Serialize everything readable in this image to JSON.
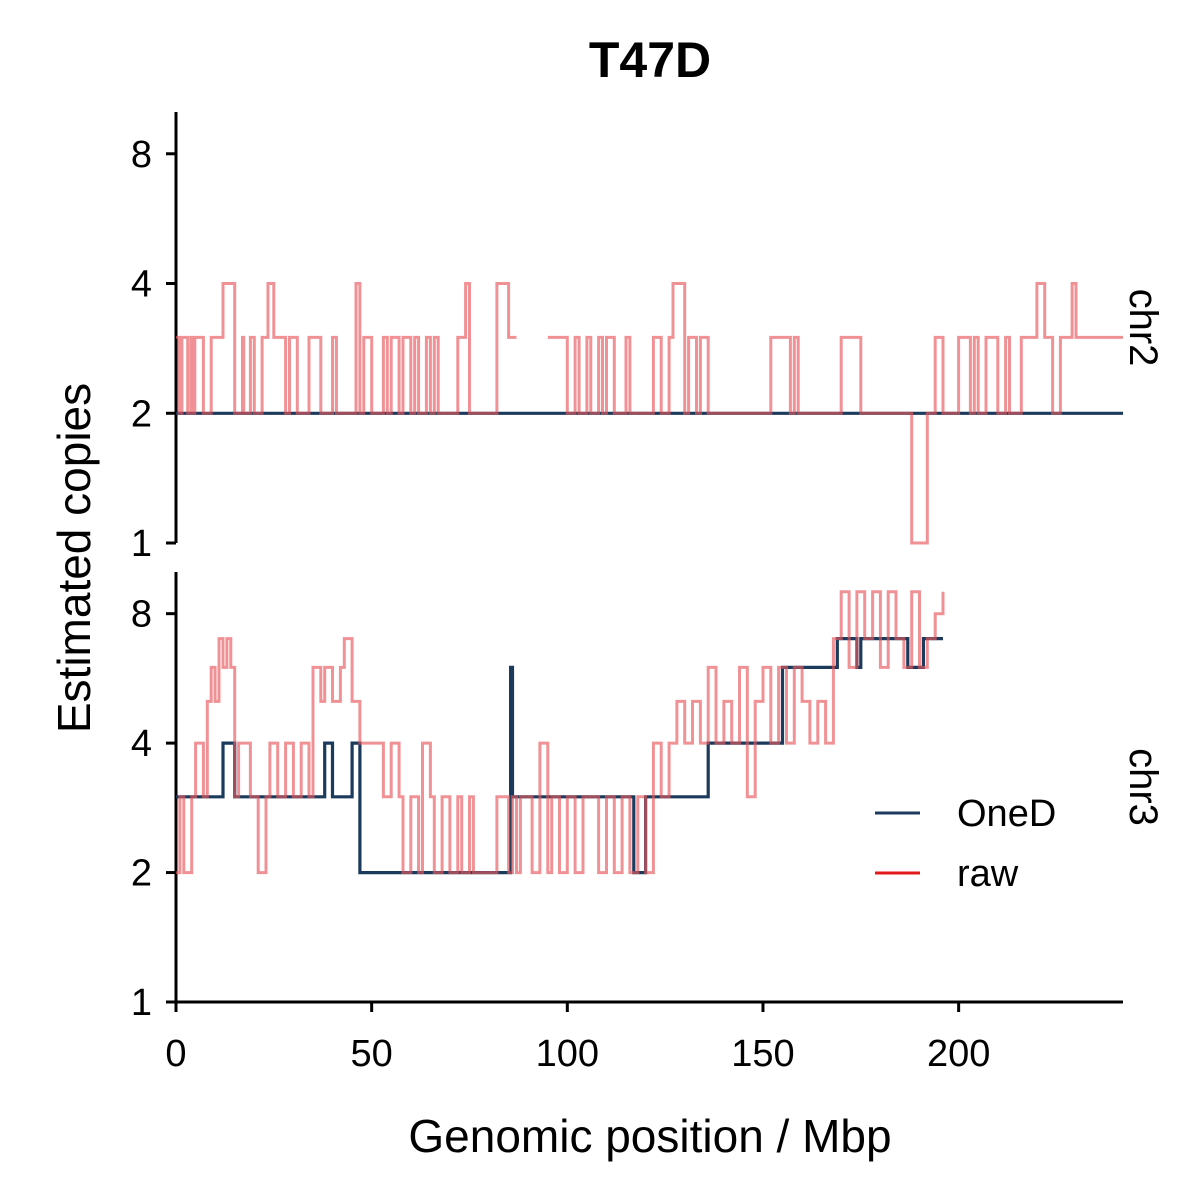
{
  "chart_data": {
    "type": "line",
    "title": "T47D",
    "xlabel": "Genomic position / Mbp",
    "ylabel": "Estimated copies",
    "xlim": [
      0,
      242
    ],
    "x_ticks": [
      0,
      50,
      100,
      150,
      200
    ],
    "y_scale": "log2",
    "ylim": [
      1,
      10
    ],
    "y_ticks": [
      1,
      2,
      4,
      8
    ],
    "grid": false,
    "legend_position": "bottom-right",
    "legend": [
      {
        "name": "OneD",
        "color": "#1b3a5c"
      },
      {
        "name": "raw",
        "color": "#e31a1c"
      }
    ],
    "panels": [
      {
        "label": "chr2",
        "series": [
          {
            "name": "OneD",
            "color": "#1b3a5c",
            "x": [
              0,
              242
            ],
            "y": [
              2,
              2
            ]
          },
          {
            "name": "raw",
            "color": "#e8585c",
            "x": [
              0,
              0.8,
              1.5,
              3,
              3.8,
              4.3,
              4.8,
              7,
              9,
              12,
              15,
              17,
              17.3,
              19,
              20,
              22,
              23.5,
              25,
              28,
              29,
              31,
              34,
              37,
              40,
              41,
              46,
              47,
              48,
              50,
              53,
              54,
              55,
              57,
              58,
              60,
              61,
              62,
              64,
              65,
              66,
              67,
              70,
              72,
              74,
              75,
              76,
              82,
              85,
              87
            ],
            "y": [
              3,
              2,
              3,
              2,
              3,
              2,
              3,
              2,
              3,
              4,
              2,
              3,
              2,
              3,
              2,
              3,
              4,
              3,
              2,
              3,
              2,
              3,
              2,
              3,
              2,
              4,
              2,
              3,
              2,
              3,
              2,
              3,
              2,
              3,
              2,
              3,
              2,
              3,
              2,
              3,
              2,
              2,
              3,
              4,
              2,
              2,
              4,
              3,
              3
            ]
          },
          {
            "name": "raw",
            "color": "#e8585c",
            "x": [
              95,
              98,
              100,
              102,
              103,
              105,
              106,
              108,
              109,
              110,
              112,
              115,
              116,
              120,
              122,
              124,
              126,
              127,
              130,
              131,
              133,
              134,
              136,
              150,
              152,
              157,
              158,
              159,
              170,
              175,
              178,
              182,
              184,
              188,
              191,
              192,
              194,
              196,
              200,
              203,
              204,
              205,
              207,
              210,
              212,
              213,
              216,
              220,
              222,
              224,
              226,
              229,
              230,
              232,
              242
            ],
            "y": [
              3,
              3,
              2,
              3,
              2,
              3,
              2,
              3,
              2,
              3,
              2,
              3,
              2,
              2,
              3,
              2,
              3,
              4,
              2,
              3,
              2,
              3,
              2,
              2,
              3,
              2,
              3,
              2,
              3,
              2,
              2,
              2,
              2,
              1,
              1,
              2,
              3,
              2,
              3,
              2,
              3,
              2,
              3,
              2,
              3,
              2,
              3,
              4,
              3,
              2,
              3,
              4,
              3,
              3,
              3
            ]
          }
        ]
      },
      {
        "label": "chr3",
        "series": [
          {
            "name": "OneD",
            "color": "#1b3a5c",
            "x": [
              0,
              12,
              15,
              37,
              38,
              40,
              45,
              47,
              55,
              85,
              85.5,
              86,
              87,
              96,
              117,
              120,
              136,
              155,
              169,
              174,
              175,
              187,
              190,
              191,
              196
            ],
            "y": [
              3,
              4,
              3,
              3,
              4,
              3,
              4,
              2,
              2,
              2,
              6,
              3,
              3,
              3,
              2,
              3,
              4,
              6,
              7,
              6,
              7,
              6,
              6,
              7,
              7
            ]
          },
          {
            "name": "raw",
            "color": "#e8585c",
            "x": [
              0,
              1,
              2,
              4,
              5,
              7,
              8,
              9,
              10,
              11,
              12,
              13,
              14,
              15,
              16,
              19,
              21,
              23,
              24,
              26,
              28,
              30,
              32,
              34,
              35,
              37,
              38,
              40,
              42,
              43,
              45,
              47,
              50,
              53,
              55,
              57,
              58,
              60,
              62,
              63,
              65,
              66,
              68,
              70,
              72,
              73,
              75,
              76,
              78,
              80,
              82,
              85,
              86,
              87,
              88,
              91,
              93,
              95,
              96,
              98,
              100,
              102,
              104,
              106,
              108,
              110,
              112,
              114,
              116,
              118,
              120,
              122,
              124,
              126,
              128,
              130,
              132,
              134,
              136,
              138,
              140,
              142,
              144,
              146,
              148,
              150,
              152,
              154,
              156,
              158,
              160,
              162,
              164,
              166,
              168,
              170,
              172,
              174,
              176,
              178,
              180,
              182,
              184,
              186,
              188,
              190,
              192,
              194,
              196
            ],
            "y": [
              2,
              3,
              2,
              3,
              4,
              3,
              5,
              6,
              5,
              7,
              6,
              7,
              6,
              3,
              4,
              3,
              2,
              3,
              4,
              3,
              4,
              3,
              4,
              3,
              6,
              5,
              6,
              5,
              6,
              7,
              5,
              4,
              4,
              3,
              4,
              3,
              2,
              3,
              2,
              4,
              3,
              2,
              3,
              2,
              3,
              2,
              3,
              2,
              2,
              2,
              3,
              2,
              3,
              2,
              3,
              2,
              4,
              2,
              3,
              2,
              3,
              2,
              3,
              3,
              2,
              3,
              2,
              3,
              2,
              3,
              2,
              4,
              3,
              4,
              5,
              4,
              5,
              4,
              6,
              4,
              5,
              4,
              6,
              3,
              5,
              6,
              4,
              6,
              4,
              6,
              5,
              4,
              5,
              4,
              7,
              9,
              6,
              9,
              7,
              9,
              6,
              9,
              7,
              6,
              9,
              6,
              7,
              8,
              9
            ]
          }
        ]
      }
    ]
  }
}
